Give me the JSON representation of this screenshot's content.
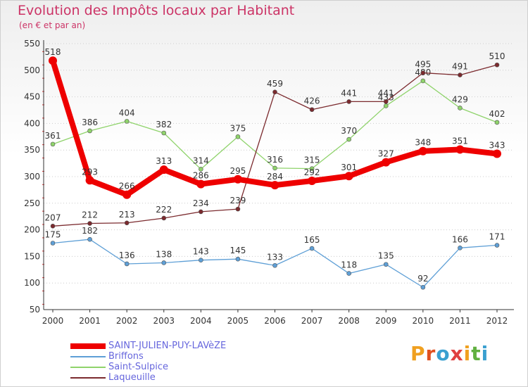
{
  "title": "Evolution des Impôts locaux par Habitant",
  "subtitle": "(en € et par an)",
  "brand": {
    "text": "Proxiti",
    "colors": [
      "#f0a020",
      "#e05020",
      "#3aa0d0",
      "#e04040",
      "#f0a020",
      "#60b040",
      "#3aa0d0"
    ]
  },
  "chart_data": {
    "type": "line",
    "title": "Evolution des Impôts locaux par Habitant",
    "subtitle": "(en € et par an)",
    "xlabel": "",
    "ylabel": "",
    "ylim": [
      50,
      550
    ],
    "yticks": [
      50,
      100,
      150,
      200,
      250,
      300,
      350,
      400,
      450,
      500,
      550
    ],
    "grid": "horizontal dotted",
    "legend_position": "bottom-left",
    "categories": [
      "2000",
      "2001",
      "2002",
      "2003",
      "2004",
      "2005",
      "2006",
      "2007",
      "2008",
      "2009",
      "2010",
      "2011",
      "2012"
    ],
    "series": [
      {
        "name": "Briffons",
        "color": "#5e9fd6",
        "values": [
          175,
          182,
          136,
          138,
          143,
          145,
          133,
          165,
          118,
          135,
          92,
          166,
          171
        ]
      },
      {
        "name": "Saint-Sulpice",
        "color": "#8fd36b",
        "values": [
          361,
          386,
          404,
          382,
          314,
          375,
          316,
          315,
          370,
          433,
          480,
          429,
          402
        ]
      },
      {
        "name": "Laqueuille",
        "color": "#7b2a2e",
        "values": [
          207,
          212,
          213,
          222,
          234,
          239,
          459,
          426,
          441,
          441,
          495,
          491,
          510
        ]
      },
      {
        "name": "SAINT-JULIEN-PUY-LAVèZE",
        "color": "#ee0000",
        "values": [
          518,
          293,
          266,
          313,
          286,
          295,
          284,
          292,
          301,
          327,
          348,
          351,
          343
        ]
      }
    ]
  },
  "legend": [
    {
      "label": "SAINT-JULIEN-PUY-LAVèZE",
      "color": "#ee0000",
      "thick": true
    },
    {
      "label": "Briffons",
      "color": "#5e9fd6",
      "thick": false
    },
    {
      "label": "Saint-Sulpice",
      "color": "#8fd36b",
      "thick": false
    },
    {
      "label": "Laqueuille",
      "color": "#7b2a2e",
      "thick": false
    }
  ]
}
